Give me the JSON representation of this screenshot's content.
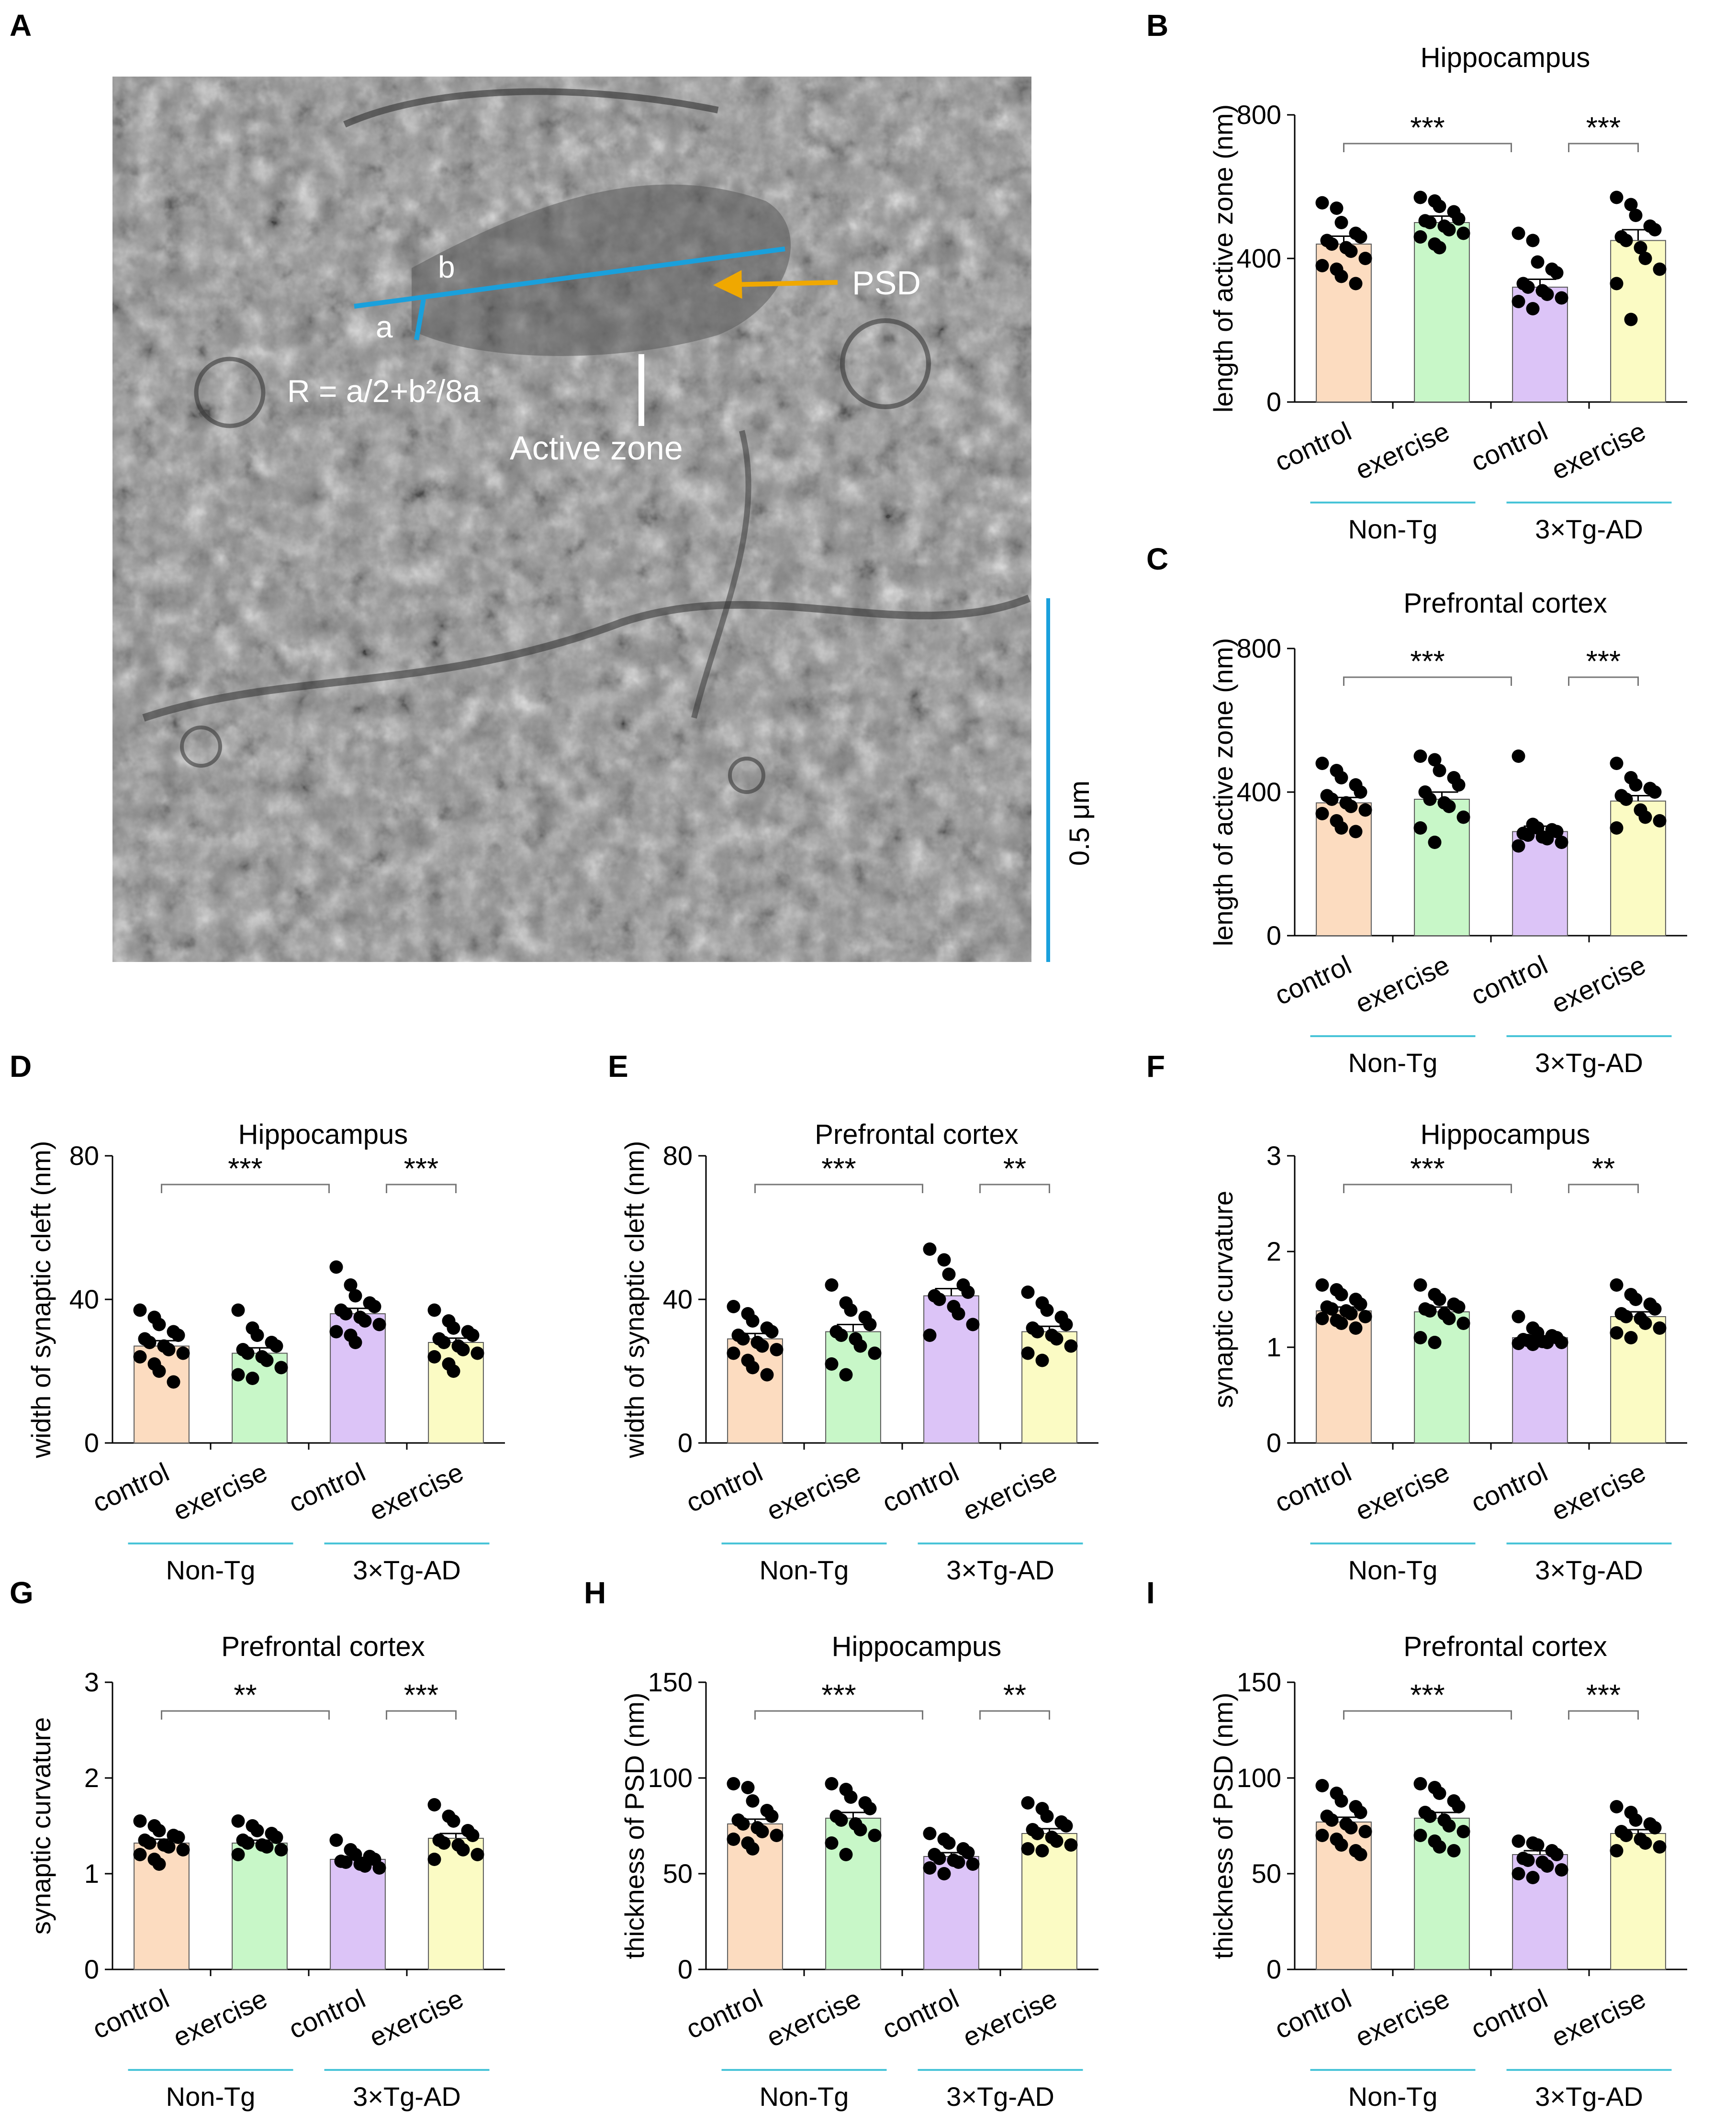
{
  "colors": {
    "bars": [
      "#fcdcc0",
      "#c8f7c8",
      "#dcc4f7",
      "#fbfbc4"
    ],
    "bar_edge": "#5a5a5a",
    "dot": "#000000",
    "group_line": "#48c4d8",
    "micro_blue": "#1aa0dc",
    "psd_arrow": "#f0a800"
  },
  "panels": {
    "A": {
      "letter": "A",
      "labels": {
        "b": "b",
        "a": "a",
        "formula": "R = a/2+b²/8a",
        "psd": "PSD",
        "active_zone": "Active zone",
        "scale": "0.5 μm"
      }
    }
  },
  "chart_data": [
    {
      "panel": "B",
      "type": "bar",
      "title": "Hippocampus",
      "ylabel": "length of active zone (nm)",
      "ylim": [
        0,
        800
      ],
      "yticks": [
        0,
        400,
        800
      ],
      "categories": [
        "control",
        "exercise",
        "control",
        "exercise"
      ],
      "groups": [
        "Non-Tg",
        "3×Tg-AD"
      ],
      "values": [
        440,
        500,
        320,
        450
      ],
      "sem": [
        22,
        18,
        22,
        30
      ],
      "points": [
        [
          555,
          540,
          500,
          470,
          460,
          450,
          440,
          430,
          420,
          400,
          380,
          370,
          350,
          330
        ],
        [
          570,
          560,
          545,
          530,
          510,
          505,
          500,
          490,
          480,
          470,
          460,
          440,
          430
        ],
        [
          470,
          450,
          390,
          370,
          360,
          330,
          320,
          310,
          300,
          290,
          280,
          260
        ],
        [
          570,
          550,
          520,
          490,
          480,
          460,
          450,
          430,
          400,
          370,
          330,
          230
        ]
      ],
      "significance": [
        {
          "from": 0,
          "to": 2,
          "label": "***"
        },
        {
          "from": 2,
          "to": 3,
          "label": "***"
        }
      ]
    },
    {
      "panel": "C",
      "type": "bar",
      "title": "Prefrontal cortex",
      "ylabel": "length of active zone (nm)",
      "ylim": [
        0,
        800
      ],
      "yticks": [
        0,
        400,
        800
      ],
      "categories": [
        "control",
        "exercise",
        "control",
        "exercise"
      ],
      "groups": [
        "Non-Tg",
        "3×Tg-AD"
      ],
      "values": [
        370,
        380,
        290,
        375
      ],
      "sem": [
        15,
        20,
        15,
        15
      ],
      "points": [
        [
          480,
          460,
          440,
          420,
          400,
          390,
          380,
          370,
          360,
          350,
          340,
          320,
          300,
          290
        ],
        [
          500,
          490,
          460,
          440,
          420,
          400,
          380,
          370,
          360,
          330,
          300,
          260
        ],
        [
          500,
          310,
          300,
          295,
          290,
          285,
          280,
          275,
          270,
          260,
          250
        ],
        [
          480,
          440,
          420,
          410,
          400,
          390,
          380,
          350,
          330,
          320,
          300
        ]
      ],
      "significance": [
        {
          "from": 0,
          "to": 2,
          "label": "***"
        },
        {
          "from": 2,
          "to": 3,
          "label": "***"
        }
      ]
    },
    {
      "panel": "D",
      "type": "bar",
      "title": "Hippocampus",
      "ylabel": "width of synaptic cleft (nm)",
      "ylim": [
        0,
        80
      ],
      "yticks": [
        0,
        40,
        80
      ],
      "categories": [
        "control",
        "exercise",
        "control",
        "exercise"
      ],
      "groups": [
        "Non-Tg",
        "3×Tg-AD"
      ],
      "values": [
        27,
        25,
        36,
        28
      ],
      "sem": [
        1.5,
        1.5,
        1.5,
        1.2
      ],
      "points": [
        [
          37,
          35,
          33,
          31,
          30,
          29,
          28,
          27,
          26,
          25,
          24,
          22,
          20,
          17
        ],
        [
          37,
          32,
          30,
          28,
          27,
          26,
          25,
          24,
          23,
          21,
          19,
          18
        ],
        [
          49,
          44,
          41,
          39,
          38,
          37,
          36,
          35,
          34,
          33,
          31,
          30,
          28
        ],
        [
          37,
          34,
          32,
          31,
          30,
          29,
          28,
          27,
          26,
          25,
          24,
          22,
          20
        ]
      ],
      "significance": [
        {
          "from": 0,
          "to": 2,
          "label": "***"
        },
        {
          "from": 2,
          "to": 3,
          "label": "***"
        }
      ]
    },
    {
      "panel": "E",
      "type": "bar",
      "title": "Prefrontal cortex",
      "ylabel": "width of synaptic cleft (nm)",
      "ylim": [
        0,
        80
      ],
      "yticks": [
        0,
        40,
        80
      ],
      "categories": [
        "control",
        "exercise",
        "control",
        "exercise"
      ],
      "groups": [
        "Non-Tg",
        "3×Tg-AD"
      ],
      "values": [
        29,
        31,
        41,
        31
      ],
      "sem": [
        1.5,
        2,
        2,
        1.5
      ],
      "points": [
        [
          38,
          36,
          34,
          32,
          31,
          30,
          29,
          28,
          27,
          26,
          25,
          23,
          21,
          19
        ],
        [
          44,
          39,
          37,
          35,
          33,
          31,
          30,
          29,
          27,
          25,
          22,
          19
        ],
        [
          54,
          51,
          47,
          44,
          42,
          41,
          40,
          38,
          36,
          33,
          30
        ],
        [
          42,
          39,
          37,
          35,
          33,
          32,
          31,
          30,
          29,
          27,
          25,
          23
        ]
      ],
      "significance": [
        {
          "from": 0,
          "to": 2,
          "label": "***"
        },
        {
          "from": 2,
          "to": 3,
          "label": "**"
        }
      ]
    },
    {
      "panel": "F",
      "type": "bar",
      "title": "Hippocampus",
      "ylabel": "synaptic curvature",
      "ylim": [
        0,
        3
      ],
      "yticks": [
        0,
        1,
        2,
        3
      ],
      "categories": [
        "control",
        "exercise",
        "control",
        "exercise"
      ],
      "groups": [
        "Non-Tg",
        "3×Tg-AD"
      ],
      "values": [
        1.38,
        1.37,
        1.1,
        1.32
      ],
      "sem": [
        0.04,
        0.05,
        0.02,
        0.05
      ],
      "points": [
        [
          1.65,
          1.6,
          1.55,
          1.5,
          1.45,
          1.42,
          1.4,
          1.38,
          1.35,
          1.32,
          1.3,
          1.28,
          1.25,
          1.2
        ],
        [
          1.65,
          1.55,
          1.5,
          1.45,
          1.42,
          1.4,
          1.38,
          1.35,
          1.3,
          1.25,
          1.1,
          1.05
        ],
        [
          1.32,
          1.2,
          1.15,
          1.12,
          1.1,
          1.08,
          1.07,
          1.06,
          1.05,
          1.05,
          1.04,
          1.03
        ],
        [
          1.65,
          1.55,
          1.5,
          1.45,
          1.4,
          1.35,
          1.32,
          1.3,
          1.25,
          1.2,
          1.15,
          1.1
        ]
      ],
      "significance": [
        {
          "from": 0,
          "to": 2,
          "label": "***"
        },
        {
          "from": 2,
          "to": 3,
          "label": "**"
        }
      ]
    },
    {
      "panel": "G",
      "type": "bar",
      "title": "Prefrontal cortex",
      "ylabel": "synaptic curvature",
      "ylim": [
        0,
        3
      ],
      "yticks": [
        0,
        1,
        2,
        3
      ],
      "categories": [
        "control",
        "exercise",
        "control",
        "exercise"
      ],
      "groups": [
        "Non-Tg",
        "3×Tg-AD"
      ],
      "values": [
        1.32,
        1.32,
        1.15,
        1.37
      ],
      "sem": [
        0.04,
        0.03,
        0.02,
        0.05
      ],
      "points": [
        [
          1.55,
          1.5,
          1.45,
          1.4,
          1.38,
          1.35,
          1.32,
          1.3,
          1.28,
          1.25,
          1.2,
          1.15,
          1.1
        ],
        [
          1.55,
          1.5,
          1.45,
          1.42,
          1.38,
          1.35,
          1.32,
          1.3,
          1.28,
          1.25,
          1.2
        ],
        [
          1.35,
          1.25,
          1.2,
          1.18,
          1.15,
          1.13,
          1.12,
          1.1,
          1.08,
          1.06
        ],
        [
          1.72,
          1.6,
          1.55,
          1.45,
          1.4,
          1.35,
          1.32,
          1.3,
          1.25,
          1.2,
          1.15
        ]
      ],
      "significance": [
        {
          "from": 0,
          "to": 2,
          "label": "**"
        },
        {
          "from": 2,
          "to": 3,
          "label": "***"
        }
      ]
    },
    {
      "panel": "H",
      "type": "bar",
      "title": "Hippocampus",
      "ylabel": "thickness of PSD (nm)",
      "ylim": [
        0,
        150
      ],
      "yticks": [
        0,
        50,
        100,
        150
      ],
      "categories": [
        "control",
        "exercise",
        "control",
        "exercise"
      ],
      "groups": [
        "Non-Tg",
        "3×Tg-AD"
      ],
      "values": [
        76,
        79,
        59,
        71
      ],
      "sem": [
        2.5,
        3,
        2,
        2.5
      ],
      "points": [
        [
          97,
          95,
          88,
          83,
          80,
          78,
          76,
          74,
          72,
          70,
          68,
          66,
          63
        ],
        [
          97,
          94,
          90,
          87,
          84,
          80,
          78,
          76,
          73,
          70,
          66,
          60
        ],
        [
          71,
          68,
          66,
          63,
          61,
          60,
          58,
          57,
          56,
          55,
          53,
          50
        ],
        [
          87,
          84,
          80,
          77,
          75,
          73,
          71,
          69,
          67,
          65,
          63,
          62
        ]
      ],
      "significance": [
        {
          "from": 0,
          "to": 2,
          "label": "***"
        },
        {
          "from": 2,
          "to": 3,
          "label": "**"
        }
      ]
    },
    {
      "panel": "I",
      "type": "bar",
      "title": "Prefrontal cortex",
      "ylabel": "thickness of PSD (nm)",
      "ylim": [
        0,
        150
      ],
      "yticks": [
        0,
        50,
        100,
        150
      ],
      "categories": [
        "control",
        "exercise",
        "control",
        "exercise"
      ],
      "groups": [
        "Non-Tg",
        "3×Tg-AD"
      ],
      "values": [
        77,
        79,
        60,
        71
      ],
      "sem": [
        2.5,
        3,
        2,
        2
      ],
      "points": [
        [
          96,
          92,
          88,
          85,
          82,
          80,
          78,
          76,
          74,
          72,
          70,
          68,
          65,
          62,
          60
        ],
        [
          97,
          95,
          92,
          88,
          85,
          82,
          80,
          78,
          75,
          72,
          70,
          67,
          64,
          62
        ],
        [
          67,
          66,
          65,
          62,
          60,
          58,
          57,
          56,
          54,
          52,
          50,
          48
        ],
        [
          85,
          82,
          78,
          76,
          74,
          72,
          70,
          68,
          66,
          64,
          62
        ]
      ],
      "significance": [
        {
          "from": 0,
          "to": 2,
          "label": "***"
        },
        {
          "from": 2,
          "to": 3,
          "label": "***"
        }
      ]
    }
  ]
}
